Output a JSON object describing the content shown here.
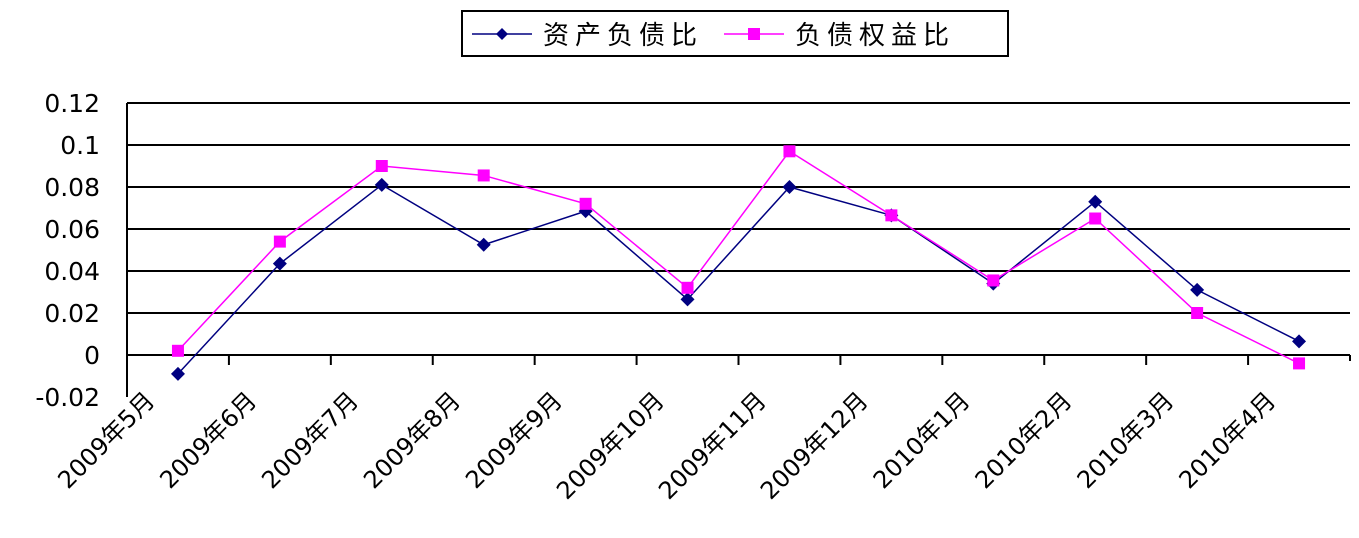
{
  "chart_data": {
    "type": "line",
    "title": "",
    "xlabel": "",
    "ylabel": "",
    "categories": [
      "2009年5月",
      "2009年6月",
      "2009年7月",
      "2009年8月",
      "2009年9月",
      "2009年10月",
      "2009年11月",
      "2009年12月",
      "2010年1月",
      "2010年2月",
      "2010年3月",
      "2010年4月"
    ],
    "yticks": [
      "0.12",
      "0.1",
      "0.08",
      "0.06",
      "0.04",
      "0.02",
      "0",
      "-0.02"
    ],
    "ylim": [
      -0.02,
      0.12
    ],
    "grid": true,
    "legend_position": "top",
    "series": [
      {
        "name": "资产负债比",
        "color": "#000080",
        "marker": "diamond",
        "values": [
          -0.009,
          0.0435,
          0.081,
          0.0525,
          0.0685,
          0.0265,
          0.08,
          0.0665,
          0.034,
          0.073,
          0.031,
          0.0065
        ]
      },
      {
        "name": "负债权益比",
        "color": "#FF00FF",
        "marker": "square",
        "values": [
          0.002,
          0.054,
          0.09,
          0.0855,
          0.072,
          0.032,
          0.097,
          0.0665,
          0.0355,
          0.065,
          0.02,
          -0.004
        ]
      }
    ]
  }
}
